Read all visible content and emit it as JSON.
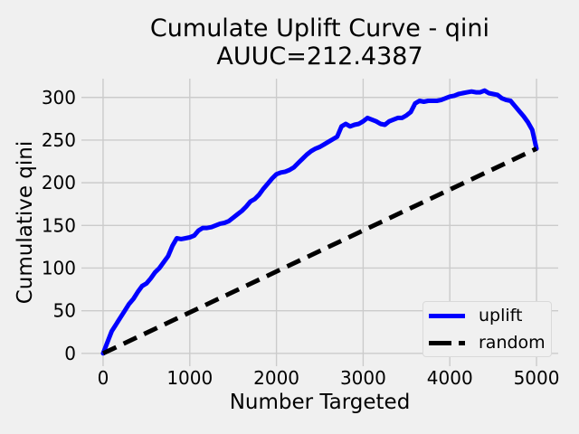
{
  "chart_data": {
    "type": "line",
    "title": "Cumulate Uplift Curve - qini",
    "subtitle": "AUUC=212.4387",
    "xlabel": "Number Targeted",
    "ylabel": "Cumulative qini",
    "xlim": [
      -250,
      5250
    ],
    "ylim": [
      -15,
      322
    ],
    "xticks": [
      0,
      1000,
      2000,
      3000,
      4000,
      5000
    ],
    "yticks": [
      0,
      50,
      100,
      150,
      200,
      250,
      300
    ],
    "grid": true,
    "background_color": "#f0f0f0",
    "grid_color": "#cbcbcb",
    "legend_position": "lower right",
    "series": [
      {
        "name": "uplift",
        "color": "#0000ff",
        "line_style": "solid",
        "x": [
          0,
          50,
          100,
          150,
          200,
          250,
          300,
          350,
          400,
          450,
          500,
          550,
          600,
          650,
          700,
          750,
          800,
          850,
          900,
          950,
          1000,
          1050,
          1100,
          1150,
          1200,
          1250,
          1300,
          1350,
          1400,
          1450,
          1500,
          1550,
          1600,
          1650,
          1700,
          1750,
          1800,
          1850,
          1900,
          1950,
          2000,
          2050,
          2100,
          2150,
          2200,
          2250,
          2300,
          2350,
          2400,
          2450,
          2500,
          2550,
          2600,
          2650,
          2700,
          2750,
          2800,
          2850,
          2900,
          2950,
          3000,
          3050,
          3100,
          3150,
          3200,
          3250,
          3300,
          3350,
          3400,
          3450,
          3500,
          3550,
          3600,
          3650,
          3700,
          3750,
          3800,
          3850,
          3900,
          3950,
          4000,
          4050,
          4100,
          4150,
          4200,
          4250,
          4300,
          4350,
          4400,
          4450,
          4500,
          4550,
          4600,
          4650,
          4700,
          4750,
          4800,
          4850,
          4900,
          4950,
          5000
        ],
        "y": [
          0,
          13,
          26,
          34,
          42,
          50,
          58,
          64,
          72,
          79,
          82,
          88,
          95,
          100,
          107,
          114,
          126,
          135,
          134,
          135,
          136,
          138,
          144,
          147,
          147,
          148,
          150,
          152,
          153,
          155,
          159,
          163,
          167,
          172,
          178,
          181,
          186,
          193,
          199,
          205,
          210,
          212,
          213,
          215,
          218,
          223,
          228,
          233,
          237,
          240,
          242,
          245,
          248,
          251,
          254,
          266,
          269,
          266,
          268,
          269,
          272,
          276,
          274,
          272,
          269,
          268,
          272,
          274,
          276,
          276,
          279,
          283,
          293,
          296,
          295,
          296,
          296,
          296,
          297,
          299,
          301,
          302,
          304,
          305,
          306,
          307,
          306,
          306,
          308,
          305,
          304,
          303,
          299,
          297,
          296,
          290,
          284,
          278,
          271,
          262,
          240
        ]
      },
      {
        "name": "random",
        "color": "#000000",
        "line_style": "dashed",
        "x": [
          0,
          5000
        ],
        "y": [
          0,
          240
        ]
      }
    ]
  }
}
